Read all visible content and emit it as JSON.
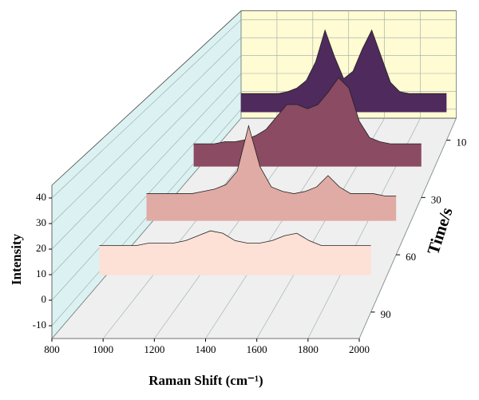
{
  "chart_data": {
    "type": "waterfall",
    "x_label": "Raman Shift (cm⁻¹)",
    "y_label": "Intensity",
    "z_label": "Time/s",
    "x": [
      900,
      950,
      1000,
      1050,
      1100,
      1150,
      1200,
      1250,
      1300,
      1350,
      1400,
      1450,
      1500,
      1550,
      1600,
      1650,
      1700,
      1750,
      1800,
      1850,
      1900,
      1950,
      2000
    ],
    "series": [
      {
        "name": "10",
        "color": "#4f2a5c",
        "values": [
          10,
          10,
          10,
          10,
          10,
          11,
          13,
          17,
          27,
          44,
          30,
          18,
          22,
          34,
          44,
          30,
          16,
          11,
          10,
          10,
          10,
          10,
          10
        ]
      },
      {
        "name": "30",
        "color": "#8a4b63",
        "values": [
          11,
          11,
          11,
          12,
          12,
          13,
          15,
          18,
          24,
          30,
          30,
          28,
          30,
          36,
          43,
          38,
          22,
          14,
          12,
          11,
          11,
          11,
          11
        ]
      },
      {
        "name": "60",
        "color": "#e0aba4",
        "values": [
          12,
          12,
          12,
          12,
          12,
          13,
          14,
          16,
          22,
          42,
          24,
          15,
          13,
          12,
          13,
          15,
          20,
          15,
          12,
          12,
          12,
          11,
          11
        ]
      },
      {
        "name": "90",
        "color": "#fde0d6",
        "values": [
          12,
          12,
          12,
          12,
          13,
          13,
          13,
          14,
          16,
          18,
          17,
          14,
          13,
          13,
          14,
          16,
          17,
          14,
          12,
          12,
          12,
          12,
          12
        ]
      }
    ],
    "xlim": [
      800,
      2000
    ],
    "xticks": [
      800,
      1000,
      1200,
      1400,
      1600,
      1800,
      2000
    ],
    "ylim": [
      -15,
      45
    ],
    "yticks": [
      -10,
      0,
      10,
      20,
      30,
      40
    ],
    "grid": true
  }
}
